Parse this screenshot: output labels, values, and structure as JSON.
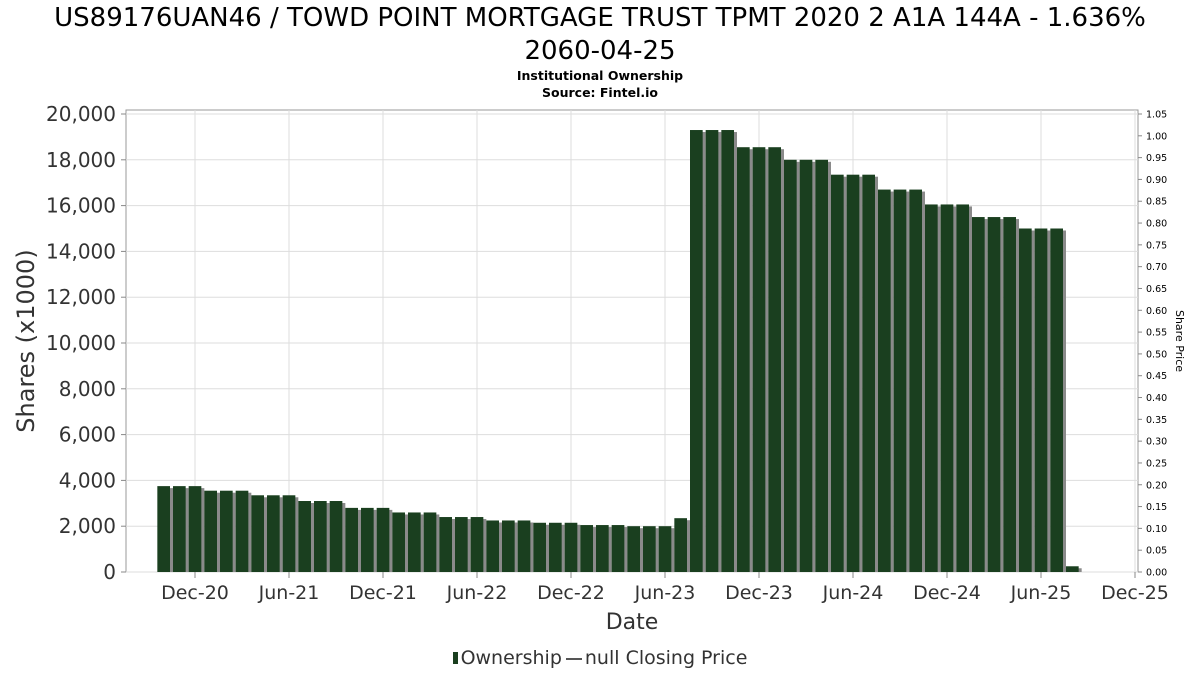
{
  "title_line1": "US89176UAN46 / TOWD POINT MORTGAGE TRUST TPMT 2020 2 A1A 144A - 1.636%",
  "title_line2": "2060-04-25",
  "subtitle1": "Institutional Ownership",
  "subtitle2": "Source: Fintel.io",
  "legend": {
    "ownership_label": "Ownership",
    "price_label": "null Closing Price"
  },
  "colors": {
    "bar": "#1a3f1f",
    "bar_shadow": "#8a8a8a",
    "grid": "#dddddd",
    "axis": "#888888"
  },
  "chart_data": {
    "type": "bar",
    "xlabel": "Date",
    "ylabel": "Shares (x1000)",
    "y2label": "Share Price",
    "ylim": [
      0,
      20000
    ],
    "y2lim": [
      0,
      1.05
    ],
    "x_ticks": [
      "Dec-20",
      "Jun-21",
      "Dec-21",
      "Jun-22",
      "Dec-22",
      "Jun-23",
      "Dec-23",
      "Jun-24",
      "Dec-24",
      "Jun-25",
      "Dec-25"
    ],
    "y_ticks": [
      "0",
      "2,000",
      "4,000",
      "6,000",
      "8,000",
      "10,000",
      "12,000",
      "14,000",
      "16,000",
      "18,000",
      "20,000"
    ],
    "y2_ticks": [
      "0.00",
      "0.05",
      "0.10",
      "0.15",
      "0.20",
      "0.25",
      "0.30",
      "0.35",
      "0.40",
      "0.45",
      "0.50",
      "0.55",
      "0.60",
      "0.65",
      "0.70",
      "0.75",
      "0.80",
      "0.85",
      "0.90",
      "0.95",
      "1.00",
      "1.05"
    ],
    "grid": true,
    "legend_position": "bottom",
    "series": [
      {
        "name": "Ownership",
        "dates": [
          "2020-10",
          "2020-11",
          "2020-12",
          "2021-01",
          "2021-02",
          "2021-03",
          "2021-04",
          "2021-05",
          "2021-06",
          "2021-07",
          "2021-08",
          "2021-09",
          "2021-10",
          "2021-11",
          "2021-12",
          "2022-01",
          "2022-02",
          "2022-03",
          "2022-04",
          "2022-05",
          "2022-06",
          "2022-07",
          "2022-08",
          "2022-09",
          "2022-10",
          "2022-11",
          "2022-12",
          "2023-01",
          "2023-02",
          "2023-03",
          "2023-04",
          "2023-05",
          "2023-06",
          "2023-07",
          "2023-08",
          "2023-09",
          "2023-10",
          "2023-11",
          "2023-12",
          "2024-01",
          "2024-02",
          "2024-03",
          "2024-04",
          "2024-05",
          "2024-06",
          "2024-07",
          "2024-08",
          "2024-09",
          "2024-10",
          "2024-11",
          "2024-12",
          "2025-01",
          "2025-02",
          "2025-03",
          "2025-04",
          "2025-05",
          "2025-06",
          "2025-07",
          "2025-08",
          "2025-09"
        ],
        "values": [
          3750,
          3750,
          3750,
          3550,
          3550,
          3550,
          3350,
          3350,
          3350,
          3100,
          3100,
          3100,
          2800,
          2800,
          2800,
          2600,
          2600,
          2600,
          2400,
          2400,
          2400,
          2250,
          2250,
          2250,
          2150,
          2150,
          2150,
          2050,
          2050,
          2050,
          2000,
          2000,
          2000,
          2350,
          19300,
          19300,
          19300,
          18550,
          18550,
          18550,
          18000,
          18000,
          18000,
          17350,
          17350,
          17350,
          16700,
          16700,
          16700,
          16050,
          16050,
          16050,
          15500,
          15500,
          15500,
          15000,
          15000,
          15000,
          250,
          0
        ]
      }
    ]
  }
}
